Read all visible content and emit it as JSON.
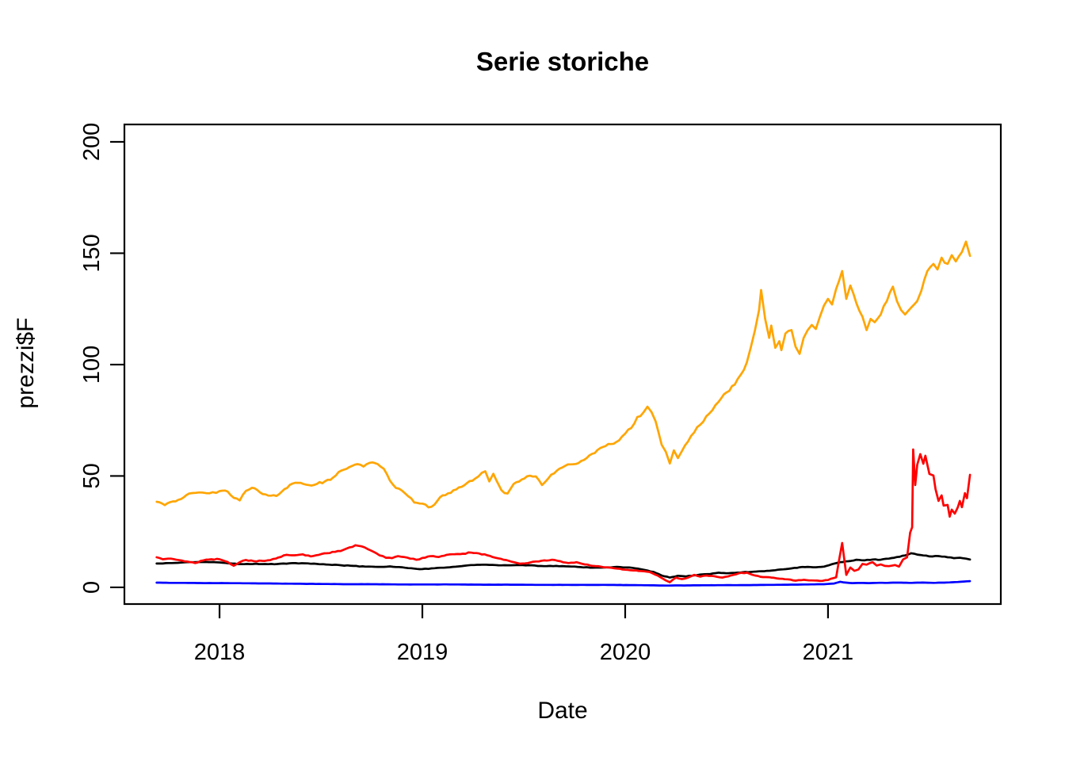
{
  "chart_data": {
    "type": "line",
    "title": "Serie storiche",
    "xlabel": "Date",
    "ylabel": "prezzi$F",
    "x_ticks": [
      2018,
      2019,
      2020,
      2021
    ],
    "y_ticks": [
      0,
      50,
      100,
      150,
      200
    ],
    "xlim": [
      2017.531,
      2021.852
    ],
    "ylim": [
      -7.5,
      207.8
    ],
    "grid": false,
    "legend": "none",
    "background": "#FFFFFF",
    "axis_color": "#000000",
    "series": [
      {
        "name": "black",
        "color": "#000000",
        "x": [
          2017.69,
          2017.75,
          2017.81,
          2017.87,
          2017.93,
          2018.0,
          2018.06,
          2018.12,
          2018.18,
          2018.24,
          2018.3,
          2018.36,
          2018.42,
          2018.48,
          2018.54,
          2018.6,
          2018.66,
          2018.72,
          2018.78,
          2018.84,
          2018.9,
          2018.96,
          2019.0,
          2019.06,
          2019.12,
          2019.18,
          2019.24,
          2019.3,
          2019.36,
          2019.42,
          2019.48,
          2019.54,
          2019.6,
          2019.66,
          2019.72,
          2019.78,
          2019.84,
          2019.9,
          2019.96,
          2020.02,
          2020.08,
          2020.14,
          2020.18,
          2020.22,
          2020.26,
          2020.3,
          2020.34,
          2020.38,
          2020.42,
          2020.46,
          2020.5,
          2020.54,
          2020.58,
          2020.62,
          2020.66,
          2020.7,
          2020.74,
          2020.78,
          2020.82,
          2020.86,
          2020.9,
          2020.94,
          2020.98,
          2021.02,
          2021.06,
          2021.1,
          2021.14,
          2021.18,
          2021.22,
          2021.26,
          2021.3,
          2021.34,
          2021.38,
          2021.41,
          2021.44,
          2021.47,
          2021.5,
          2021.53,
          2021.56,
          2021.59,
          2021.62,
          2021.65,
          2021.68,
          2021.7
        ],
        "y": [
          10.7,
          10.9,
          11.1,
          11.3,
          11.4,
          11.2,
          10.7,
          10.4,
          10.6,
          10.4,
          10.6,
          10.9,
          10.8,
          10.5,
          10.2,
          9.9,
          9.6,
          9.3,
          9.2,
          9.4,
          9.0,
          8.4,
          8.2,
          8.6,
          8.9,
          9.4,
          10.0,
          10.2,
          10.0,
          9.9,
          10.0,
          9.9,
          9.5,
          9.6,
          9.4,
          9.1,
          8.8,
          8.9,
          9.2,
          8.9,
          8.1,
          6.9,
          5.3,
          4.4,
          5.2,
          4.9,
          5.4,
          5.8,
          6.0,
          6.6,
          6.3,
          6.5,
          6.8,
          6.9,
          7.2,
          7.4,
          7.7,
          8.1,
          8.5,
          9.0,
          9.2,
          9.0,
          9.3,
          10.4,
          11.3,
          11.7,
          12.4,
          12.1,
          12.5,
          12.4,
          12.9,
          13.6,
          14.3,
          15.3,
          14.7,
          14.3,
          13.9,
          14.1,
          13.8,
          13.5,
          13.1,
          13.3,
          12.9,
          12.5
        ]
      },
      {
        "name": "orange",
        "color": "#FFA500",
        "x": [
          2017.69,
          2017.73,
          2017.77,
          2017.81,
          2017.85,
          2017.9,
          2017.95,
          2018.0,
          2018.04,
          2018.07,
          2018.1,
          2018.13,
          2018.16,
          2018.2,
          2018.24,
          2018.28,
          2018.32,
          2018.36,
          2018.4,
          2018.44,
          2018.48,
          2018.52,
          2018.56,
          2018.6,
          2018.64,
          2018.68,
          2018.71,
          2018.74,
          2018.78,
          2018.81,
          2018.84,
          2018.87,
          2018.9,
          2018.93,
          2018.96,
          2019.0,
          2019.03,
          2019.06,
          2019.1,
          2019.14,
          2019.18,
          2019.22,
          2019.26,
          2019.31,
          2019.33,
          2019.35,
          2019.39,
          2019.42,
          2019.45,
          2019.49,
          2019.53,
          2019.56,
          2019.59,
          2019.62,
          2019.65,
          2019.69,
          2019.73,
          2019.77,
          2019.81,
          2019.85,
          2019.89,
          2019.93,
          2019.97,
          2020.0,
          2020.03,
          2020.06,
          2020.09,
          2020.11,
          2020.13,
          2020.15,
          2020.18,
          2020.2,
          2020.22,
          2020.24,
          2020.26,
          2020.28,
          2020.31,
          2020.34,
          2020.37,
          2020.4,
          2020.43,
          2020.46,
          2020.5,
          2020.54,
          2020.57,
          2020.6,
          2020.62,
          2020.64,
          2020.66,
          2020.67,
          2020.69,
          2020.71,
          2020.72,
          2020.74,
          2020.76,
          2020.77,
          2020.79,
          2020.82,
          2020.84,
          2020.86,
          2020.88,
          2020.9,
          2020.92,
          2020.94,
          2020.96,
          2020.98,
          2021.0,
          2021.02,
          2021.04,
          2021.07,
          2021.09,
          2021.11,
          2021.14,
          2021.17,
          2021.19,
          2021.21,
          2021.23,
          2021.26,
          2021.29,
          2021.32,
          2021.34,
          2021.36,
          2021.38,
          2021.41,
          2021.44,
          2021.46,
          2021.49,
          2021.52,
          2021.54,
          2021.56,
          2021.59,
          2021.61,
          2021.63,
          2021.66,
          2021.68,
          2021.7
        ],
        "y": [
          38.4,
          36.9,
          38.6,
          39.6,
          42.1,
          42.6,
          42.2,
          43.2,
          43.0,
          40.2,
          39.0,
          43.3,
          44.7,
          42.6,
          41.2,
          41.0,
          44.1,
          46.6,
          46.9,
          45.9,
          46.4,
          47.6,
          49.3,
          52.4,
          54.0,
          55.3,
          54.2,
          55.9,
          55.3,
          53.2,
          47.9,
          44.6,
          43.4,
          40.9,
          38.1,
          37.6,
          35.9,
          37.2,
          41.3,
          42.4,
          44.9,
          46.8,
          48.8,
          52.1,
          47.5,
          51.0,
          43.6,
          42.1,
          46.4,
          48.4,
          50.1,
          49.8,
          45.9,
          48.8,
          51.2,
          53.8,
          55.2,
          55.8,
          58.0,
          60.3,
          63.0,
          64.3,
          66.0,
          69.0,
          71.5,
          76.5,
          78.5,
          81.1,
          78.7,
          74.5,
          64.0,
          60.9,
          55.6,
          61.5,
          58.0,
          61.2,
          65.5,
          69.5,
          73.0,
          76.8,
          79.5,
          83.2,
          87.5,
          91.0,
          95.5,
          101.0,
          108.0,
          115.5,
          124.5,
          133.5,
          120.5,
          112.0,
          117.5,
          107.5,
          110.5,
          106.5,
          114.0,
          115.5,
          108.0,
          104.8,
          112.0,
          115.5,
          117.8,
          116.0,
          121.5,
          126.5,
          129.5,
          127.0,
          134.0,
          142.0,
          129.5,
          135.5,
          127.5,
          121.5,
          115.5,
          120.5,
          119.0,
          122.5,
          128.5,
          135.0,
          128.5,
          124.5,
          122.5,
          125.6,
          128.5,
          133.1,
          142.0,
          145.2,
          142.7,
          148.0,
          145.2,
          149.1,
          146.3,
          150.5,
          155.2,
          148.8
        ]
      },
      {
        "name": "red",
        "color": "#FF0000",
        "x": [
          2017.69,
          2017.72,
          2017.76,
          2017.8,
          2017.84,
          2017.88,
          2017.92,
          2017.96,
          2018.0,
          2018.04,
          2018.07,
          2018.1,
          2018.13,
          2018.17,
          2018.21,
          2018.25,
          2018.29,
          2018.33,
          2018.37,
          2018.41,
          2018.45,
          2018.49,
          2018.53,
          2018.57,
          2018.61,
          2018.64,
          2018.67,
          2018.7,
          2018.73,
          2018.76,
          2018.79,
          2018.82,
          2018.85,
          2018.88,
          2018.91,
          2018.94,
          2018.97,
          2019.0,
          2019.04,
          2019.08,
          2019.12,
          2019.16,
          2019.2,
          2019.24,
          2019.28,
          2019.32,
          2019.36,
          2019.4,
          2019.44,
          2019.48,
          2019.52,
          2019.56,
          2019.6,
          2019.64,
          2019.68,
          2019.72,
          2019.76,
          2019.8,
          2019.84,
          2019.88,
          2019.92,
          2019.96,
          2020.0,
          2020.04,
          2020.08,
          2020.12,
          2020.16,
          2020.2,
          2020.22,
          2020.25,
          2020.28,
          2020.31,
          2020.34,
          2020.37,
          2020.4,
          2020.44,
          2020.48,
          2020.52,
          2020.56,
          2020.6,
          2020.64,
          2020.68,
          2020.72,
          2020.76,
          2020.8,
          2020.84,
          2020.88,
          2020.92,
          2020.96,
          2021.0,
          2021.04,
          2021.07,
          2021.09,
          2021.11,
          2021.13,
          2021.15,
          2021.17,
          2021.19,
          2021.22,
          2021.24,
          2021.26,
          2021.28,
          2021.3,
          2021.33,
          2021.35,
          2021.37,
          2021.39,
          2021.405,
          2021.415,
          2021.42,
          2021.43,
          2021.44,
          2021.455,
          2021.47,
          2021.48,
          2021.5,
          2021.52,
          2021.53,
          2021.545,
          2021.56,
          2021.57,
          2021.59,
          2021.6,
          2021.61,
          2021.625,
          2021.64,
          2021.65,
          2021.66,
          2021.675,
          2021.685,
          2021.7
        ],
        "y": [
          13.5,
          12.6,
          12.9,
          12.2,
          11.6,
          10.9,
          12.1,
          12.6,
          12.6,
          11.4,
          9.7,
          11.3,
          12.3,
          11.7,
          11.9,
          12.2,
          13.4,
          14.6,
          14.4,
          14.8,
          13.9,
          14.6,
          15.3,
          15.9,
          16.8,
          17.9,
          18.9,
          18.4,
          17.2,
          15.9,
          14.3,
          13.3,
          13.1,
          14.0,
          13.6,
          12.9,
          12.4,
          13.2,
          14.0,
          13.6,
          14.6,
          14.9,
          15.1,
          15.6,
          15.2,
          14.4,
          13.3,
          12.4,
          11.5,
          10.6,
          10.9,
          11.6,
          12.1,
          12.4,
          11.7,
          10.9,
          11.3,
          10.3,
          9.6,
          9.3,
          8.9,
          8.4,
          7.9,
          7.6,
          7.3,
          6.9,
          5.3,
          3.1,
          2.3,
          4.4,
          3.7,
          4.4,
          5.6,
          4.8,
          5.3,
          5.0,
          4.4,
          5.3,
          6.3,
          6.6,
          5.3,
          4.6,
          4.4,
          3.9,
          3.6,
          3.0,
          3.4,
          3.1,
          2.9,
          3.3,
          4.5,
          19.9,
          5.6,
          8.9,
          7.4,
          8.0,
          10.5,
          10.2,
          11.3,
          9.8,
          10.3,
          9.6,
          9.5,
          10.0,
          9.3,
          12.5,
          13.5,
          24.6,
          27.0,
          61.9,
          45.9,
          55.0,
          59.8,
          55.5,
          59.1,
          50.9,
          50.2,
          44.1,
          38.8,
          41.3,
          36.7,
          37.0,
          31.7,
          34.9,
          33.1,
          35.9,
          38.8,
          36.0,
          42.3,
          40.0,
          50.5
        ]
      },
      {
        "name": "blue",
        "color": "#0000FF",
        "x": [
          2017.69,
          2017.8,
          2017.92,
          2018.04,
          2018.16,
          2018.28,
          2018.4,
          2018.52,
          2018.64,
          2018.76,
          2018.88,
          2019.0,
          2019.15,
          2019.3,
          2019.45,
          2019.6,
          2019.75,
          2019.9,
          2020.05,
          2020.2,
          2020.35,
          2020.5,
          2020.6,
          2020.7,
          2020.8,
          2020.9,
          2020.98,
          2021.03,
          2021.06,
          2021.09,
          2021.12,
          2021.16,
          2021.2,
          2021.24,
          2021.28,
          2021.32,
          2021.36,
          2021.4,
          2021.44,
          2021.48,
          2021.52,
          2021.56,
          2021.6,
          2021.64,
          2021.67,
          2021.7
        ],
        "y": [
          2.1,
          2.0,
          1.9,
          1.9,
          1.8,
          1.7,
          1.6,
          1.5,
          1.4,
          1.4,
          1.3,
          1.3,
          1.3,
          1.2,
          1.2,
          1.1,
          1.1,
          1.1,
          1.0,
          0.8,
          0.9,
          1.0,
          1.0,
          1.1,
          1.2,
          1.3,
          1.4,
          1.7,
          2.5,
          2.1,
          1.9,
          2.0,
          1.9,
          2.0,
          2.0,
          2.1,
          2.1,
          2.0,
          2.1,
          2.1,
          2.0,
          2.1,
          2.2,
          2.4,
          2.6,
          2.8
        ]
      }
    ]
  }
}
